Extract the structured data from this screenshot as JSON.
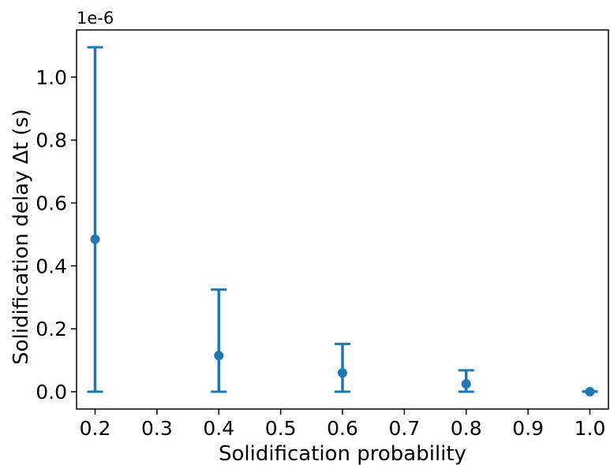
{
  "chart_data": {
    "type": "scatter",
    "subtype": "errorbar",
    "title": "",
    "xlabel": "Solidification probability",
    "ylabel": "Solidification delay Δt (s)",
    "y_offset_label": "1e-6",
    "y_scale_factor": 1e-06,
    "xlim": [
      0.17,
      1.03
    ],
    "ylim": [
      -0.055,
      1.15
    ],
    "xticks": [
      0.2,
      0.3,
      0.4,
      0.5,
      0.6,
      0.7,
      0.8,
      0.9,
      1.0
    ],
    "xtick_labels": [
      "0.2",
      "0.3",
      "0.4",
      "0.5",
      "0.6",
      "0.7",
      "0.8",
      "0.9",
      "1.0"
    ],
    "yticks": [
      0.0,
      0.2,
      0.4,
      0.6,
      0.8,
      1.0
    ],
    "ytick_labels": [
      "0.0",
      "0.2",
      "0.4",
      "0.6",
      "0.8",
      "1.0"
    ],
    "grid": false,
    "series": [
      {
        "color": "#1f77b4",
        "x": [
          0.2,
          0.4,
          0.6,
          0.8,
          1.0
        ],
        "y": [
          0.485,
          0.115,
          0.06,
          0.025,
          0.0
        ],
        "y_lower": [
          0.0,
          0.0,
          0.0,
          0.0,
          0.0
        ],
        "y_upper": [
          1.095,
          0.325,
          0.152,
          0.068,
          0.001
        ]
      }
    ]
  }
}
